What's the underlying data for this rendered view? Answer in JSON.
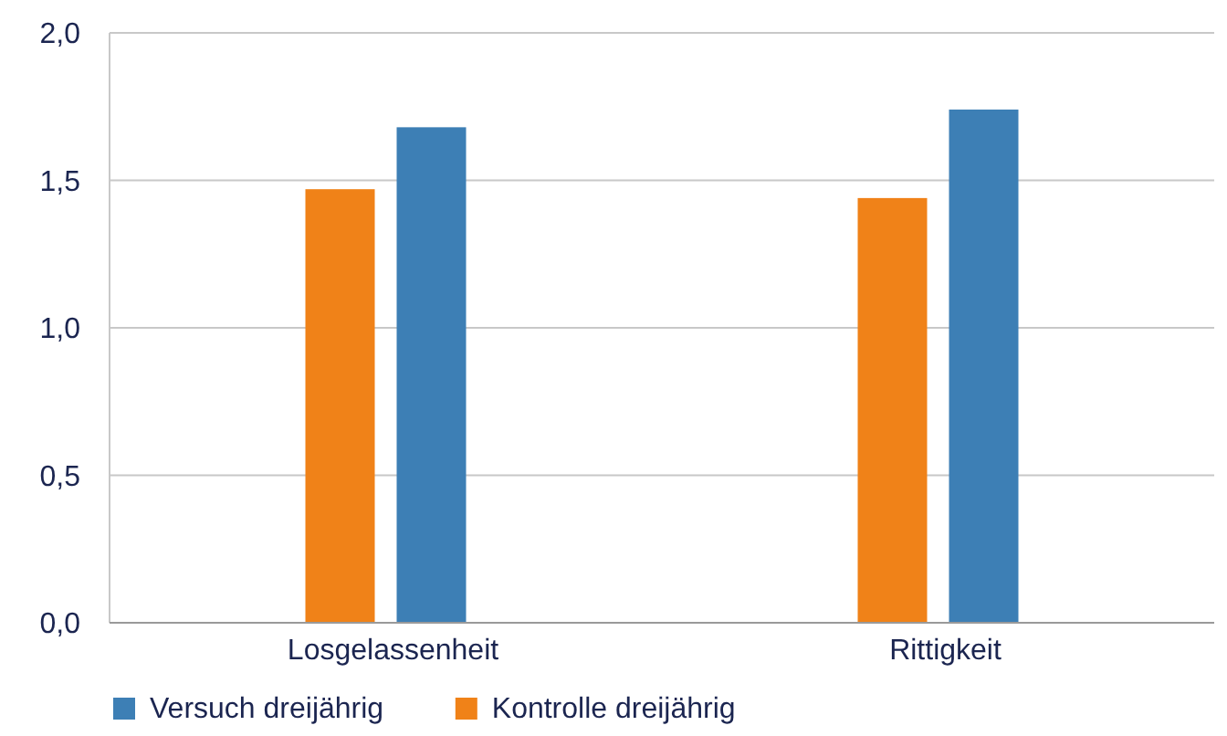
{
  "chart_data": {
    "type": "bar",
    "categories": [
      "Losgelassenheit",
      "Rittigkeit"
    ],
    "series": [
      {
        "name": "Versuch dreijährig",
        "color": "#3d7fb5",
        "values": [
          1.68,
          1.74
        ]
      },
      {
        "name": "Kontrolle dreijährig",
        "color": "#f08218",
        "values": [
          1.47,
          1.44
        ]
      }
    ],
    "ylim": [
      0,
      2
    ],
    "yticks": [
      {
        "value": 0,
        "label": "0,0"
      },
      {
        "value": 0.5,
        "label": "0,5"
      },
      {
        "value": 1,
        "label": "1,0"
      },
      {
        "value": 1.5,
        "label": "1,5"
      },
      {
        "value": 2,
        "label": "2,0"
      }
    ],
    "grid": "y",
    "legend": "bottom left"
  }
}
